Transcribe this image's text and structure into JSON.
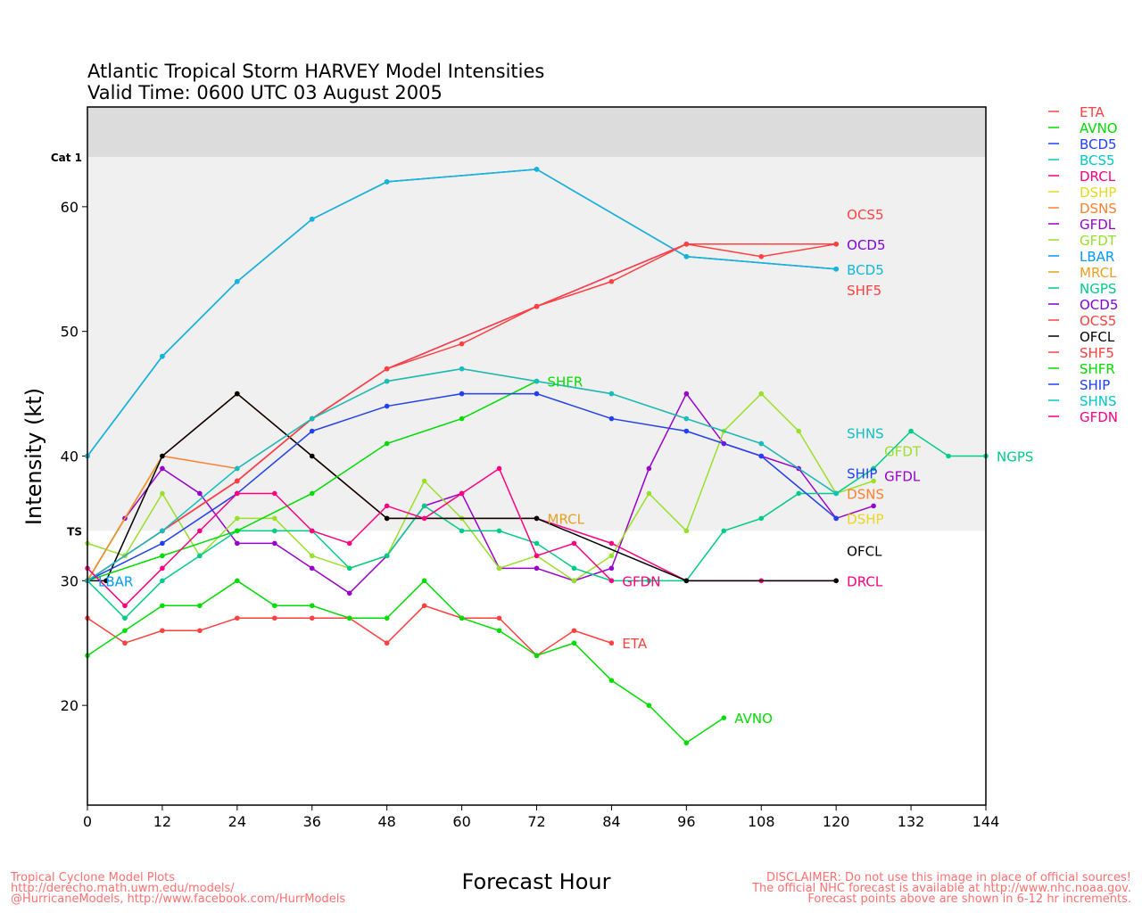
{
  "chart_data": {
    "type": "line",
    "title": "Atlantic Tropical Storm HARVEY Model Intensities",
    "subtitle": "Valid Time: 0600 UTC 03 August 2005",
    "xlabel": "Forecast Hour",
    "ylabel": "Intensity (kt)",
    "xlim": [
      0,
      144
    ],
    "ylim": [
      12,
      68
    ],
    "xticks": [
      "0",
      "12",
      "24",
      "36",
      "48",
      "60",
      "72",
      "84",
      "96",
      "108",
      "120",
      "132",
      "144"
    ],
    "yticks": [
      "20",
      "30",
      "40",
      "50",
      "60"
    ],
    "bands": [
      {
        "label": "TS",
        "from": 34,
        "to": 64,
        "color": "#f0f0f0"
      },
      {
        "label": "Cat 1",
        "from": 64,
        "to": 68,
        "color": "#dcdcdc"
      }
    ],
    "legend_position": "right",
    "series": [
      {
        "name": "ETA",
        "color": "#ff4040",
        "label": "ETA",
        "points": [
          [
            0,
            27
          ],
          [
            6,
            25
          ],
          [
            12,
            26
          ],
          [
            18,
            26
          ],
          [
            24,
            27
          ],
          [
            30,
            27
          ],
          [
            36,
            27
          ],
          [
            42,
            27
          ],
          [
            48,
            25
          ],
          [
            54,
            28
          ],
          [
            60,
            27
          ],
          [
            66,
            27
          ],
          [
            72,
            24
          ],
          [
            78,
            26
          ],
          [
            84,
            25
          ]
        ]
      },
      {
        "name": "AVNO",
        "color": "#00dd00",
        "label": "AVNO",
        "points": [
          [
            0,
            24
          ],
          [
            6,
            26
          ],
          [
            12,
            28
          ],
          [
            18,
            28
          ],
          [
            24,
            30
          ],
          [
            30,
            28
          ],
          [
            36,
            28
          ],
          [
            42,
            27
          ],
          [
            48,
            27
          ],
          [
            54,
            30
          ],
          [
            60,
            27
          ],
          [
            66,
            26
          ],
          [
            72,
            24
          ],
          [
            78,
            25
          ],
          [
            84,
            22
          ],
          [
            90,
            20
          ],
          [
            96,
            17
          ],
          [
            102,
            19
          ]
        ]
      },
      {
        "name": "BCD5",
        "color": "#2040ff",
        "label": "",
        "points": [
          [
            0,
            40
          ],
          [
            12,
            48
          ],
          [
            24,
            54
          ],
          [
            36,
            59
          ],
          [
            48,
            62
          ],
          [
            72,
            63
          ],
          [
            96,
            56
          ],
          [
            120,
            55
          ]
        ]
      },
      {
        "name": "BCS5",
        "color": "#10b8d8",
        "label": "BCD5",
        "points": [
          [
            0,
            40
          ],
          [
            12,
            48
          ],
          [
            24,
            54
          ],
          [
            36,
            59
          ],
          [
            48,
            62
          ],
          [
            72,
            63
          ],
          [
            96,
            56
          ],
          [
            120,
            55
          ]
        ]
      },
      {
        "name": "DRCL",
        "color": "#ff0080",
        "label": "DRCL",
        "points": [
          [
            0,
            30
          ],
          [
            12,
            40
          ],
          [
            24,
            45
          ],
          [
            36,
            40
          ],
          [
            48,
            35
          ],
          [
            72,
            35
          ],
          [
            84,
            33
          ],
          [
            96,
            30
          ],
          [
            108,
            30
          ],
          [
            120,
            30
          ]
        ]
      },
      {
        "name": "DSHP",
        "color": "#e8d820",
        "label": "DSHP",
        "points": [
          [
            0,
            30
          ],
          [
            12,
            33
          ],
          [
            24,
            37
          ],
          [
            36,
            42
          ],
          [
            48,
            44
          ],
          [
            60,
            45
          ],
          [
            72,
            45
          ],
          [
            84,
            43
          ],
          [
            96,
            42
          ],
          [
            108,
            40
          ],
          [
            120,
            35
          ]
        ]
      },
      {
        "name": "DSNS",
        "color": "#ff8030",
        "label": "DSNS",
        "points": [
          [
            0,
            30
          ],
          [
            12,
            40
          ],
          [
            24,
            39
          ],
          [
            36,
            43
          ],
          [
            48,
            46
          ],
          [
            60,
            47
          ],
          [
            72,
            46
          ],
          [
            84,
            45
          ],
          [
            96,
            43
          ],
          [
            108,
            41
          ],
          [
            120,
            37
          ]
        ]
      },
      {
        "name": "GFDL",
        "color": "#9900cc",
        "label": "GFDL",
        "points": [
          [
            0,
            30
          ],
          [
            6,
            35
          ],
          [
            12,
            39
          ],
          [
            18,
            37
          ],
          [
            24,
            33
          ],
          [
            30,
            33
          ],
          [
            36,
            31
          ],
          [
            42,
            29
          ],
          [
            48,
            32
          ],
          [
            54,
            36
          ],
          [
            60,
            37
          ],
          [
            66,
            31
          ],
          [
            72,
            31
          ],
          [
            78,
            30
          ],
          [
            84,
            31
          ],
          [
            90,
            39
          ],
          [
            96,
            45
          ],
          [
            102,
            41
          ],
          [
            108,
            40
          ],
          [
            114,
            39
          ],
          [
            120,
            35
          ],
          [
            126,
            36
          ]
        ]
      },
      {
        "name": "GFDT",
        "color": "#99e02a",
        "label": "GFDT",
        "points": [
          [
            0,
            33
          ],
          [
            6,
            32
          ],
          [
            12,
            37
          ],
          [
            18,
            32
          ],
          [
            24,
            35
          ],
          [
            30,
            35
          ],
          [
            36,
            32
          ],
          [
            42,
            31
          ],
          [
            48,
            32
          ],
          [
            54,
            38
          ],
          [
            60,
            35
          ],
          [
            66,
            31
          ],
          [
            72,
            32
          ],
          [
            78,
            30
          ],
          [
            84,
            32
          ],
          [
            90,
            37
          ],
          [
            96,
            34
          ],
          [
            102,
            42
          ],
          [
            108,
            45
          ],
          [
            114,
            42
          ],
          [
            120,
            37
          ],
          [
            126,
            38
          ]
        ]
      },
      {
        "name": "LBAR",
        "color": "#0099ff",
        "label": "LBAR",
        "points": [
          [
            0,
            30
          ]
        ]
      },
      {
        "name": "MRCL",
        "color": "#e8a020",
        "label": "MRCL",
        "points": [
          [
            0,
            30
          ],
          [
            12,
            40
          ],
          [
            24,
            45
          ],
          [
            36,
            40
          ],
          [
            48,
            35
          ],
          [
            72,
            35
          ]
        ]
      },
      {
        "name": "NGPS",
        "color": "#00cc88",
        "label": "NGPS",
        "points": [
          [
            0,
            30
          ],
          [
            6,
            27
          ],
          [
            12,
            30
          ],
          [
            18,
            32
          ],
          [
            24,
            34
          ],
          [
            30,
            34
          ],
          [
            36,
            34
          ],
          [
            42,
            31
          ],
          [
            48,
            32
          ],
          [
            54,
            36
          ],
          [
            60,
            34
          ],
          [
            66,
            34
          ],
          [
            72,
            33
          ],
          [
            78,
            31
          ],
          [
            84,
            30
          ],
          [
            90,
            30
          ],
          [
            96,
            30
          ],
          [
            102,
            34
          ],
          [
            108,
            35
          ],
          [
            114,
            37
          ],
          [
            120,
            37
          ],
          [
            126,
            39
          ],
          [
            132,
            42
          ],
          [
            138,
            40
          ],
          [
            144,
            40
          ]
        ]
      },
      {
        "name": "OCD5",
        "color": "#8000dd",
        "label": "OCD5",
        "points": [
          [
            0,
            30
          ],
          [
            12,
            34
          ],
          [
            24,
            38
          ],
          [
            36,
            43
          ],
          [
            48,
            47
          ],
          [
            72,
            52
          ],
          [
            96,
            57
          ],
          [
            120,
            57
          ]
        ]
      },
      {
        "name": "OCS5",
        "color": "#ff4040",
        "label": "OCS5",
        "points": [
          [
            0,
            30
          ],
          [
            12,
            34
          ],
          [
            24,
            38
          ],
          [
            36,
            43
          ],
          [
            48,
            47
          ],
          [
            72,
            52
          ],
          [
            96,
            57
          ],
          [
            120,
            57
          ]
        ]
      },
      {
        "name": "OFCL",
        "color": "#000000",
        "label": "OFCL",
        "points": [
          [
            0,
            30
          ],
          [
            3,
            30
          ],
          [
            12,
            40
          ],
          [
            24,
            45
          ],
          [
            36,
            40
          ],
          [
            48,
            35
          ],
          [
            72,
            35
          ],
          [
            96,
            30
          ],
          [
            120,
            30
          ]
        ]
      },
      {
        "name": "SHF5",
        "color": "#ff4040",
        "label": "SHF5",
        "points": [
          [
            0,
            30
          ],
          [
            12,
            34
          ],
          [
            24,
            38
          ],
          [
            36,
            43
          ],
          [
            48,
            47
          ],
          [
            60,
            49
          ],
          [
            72,
            52
          ],
          [
            84,
            54
          ],
          [
            96,
            57
          ],
          [
            108,
            56
          ],
          [
            120,
            57
          ]
        ]
      },
      {
        "name": "SHFR",
        "color": "#00dd00",
        "label": "SHFR",
        "points": [
          [
            0,
            30
          ],
          [
            12,
            32
          ],
          [
            24,
            34
          ],
          [
            36,
            37
          ],
          [
            48,
            41
          ],
          [
            60,
            43
          ],
          [
            72,
            46
          ]
        ]
      },
      {
        "name": "SHIP",
        "color": "#2040ff",
        "label": "SHIP",
        "points": [
          [
            0,
            30
          ],
          [
            12,
            33
          ],
          [
            24,
            37
          ],
          [
            36,
            42
          ],
          [
            48,
            44
          ],
          [
            60,
            45
          ],
          [
            72,
            45
          ],
          [
            84,
            43
          ],
          [
            96,
            42
          ],
          [
            108,
            40
          ],
          [
            120,
            35
          ]
        ]
      },
      {
        "name": "SHNS",
        "color": "#10c0c0",
        "label": "SHNS",
        "points": [
          [
            0,
            30
          ],
          [
            12,
            34
          ],
          [
            24,
            39
          ],
          [
            36,
            43
          ],
          [
            48,
            46
          ],
          [
            60,
            47
          ],
          [
            72,
            46
          ],
          [
            84,
            45
          ],
          [
            96,
            43
          ],
          [
            108,
            41
          ],
          [
            120,
            37
          ]
        ]
      },
      {
        "name": "GFDN",
        "color": "#ff0080",
        "label": "GFDN",
        "points": [
          [
            0,
            31
          ],
          [
            6,
            28
          ],
          [
            12,
            31
          ],
          [
            18,
            34
          ],
          [
            24,
            37
          ],
          [
            30,
            37
          ],
          [
            36,
            34
          ],
          [
            42,
            33
          ],
          [
            48,
            36
          ],
          [
            54,
            35
          ],
          [
            60,
            37
          ],
          [
            66,
            39
          ],
          [
            72,
            32
          ],
          [
            78,
            33
          ],
          [
            84,
            30
          ]
        ]
      }
    ],
    "legend": [
      {
        "name": "ETA",
        "color": "#ff4040"
      },
      {
        "name": "AVNO",
        "color": "#00dd00"
      },
      {
        "name": "BCD5",
        "color": "#2040ff"
      },
      {
        "name": "BCS5",
        "color": "#00c8c8"
      },
      {
        "name": "DRCL",
        "color": "#ff0080"
      },
      {
        "name": "DSHP",
        "color": "#e8d820"
      },
      {
        "name": "DSNS",
        "color": "#ff8030"
      },
      {
        "name": "GFDL",
        "color": "#9900cc"
      },
      {
        "name": "GFDT",
        "color": "#99e02a"
      },
      {
        "name": "LBAR",
        "color": "#0099ff"
      },
      {
        "name": "MRCL",
        "color": "#e8a020"
      },
      {
        "name": "NGPS",
        "color": "#00cc88"
      },
      {
        "name": "OCD5",
        "color": "#8000dd"
      },
      {
        "name": "OCS5",
        "color": "#ff4040"
      },
      {
        "name": "OFCL",
        "color": "#000000"
      },
      {
        "name": "SHF5",
        "color": "#ff4040"
      },
      {
        "name": "SHFR",
        "color": "#00dd00"
      },
      {
        "name": "SHIP",
        "color": "#2040ff"
      },
      {
        "name": "SHNS",
        "color": "#00c8c8"
      },
      {
        "name": "GFDN",
        "color": "#ff0080"
      }
    ]
  },
  "footer": {
    "left": [
      "Tropical Cyclone Model Plots",
      "http://derecho.math.uwm.edu/models/",
      "@HurricaneModels, http://www.facebook.com/HurrModels"
    ],
    "right": [
      "DISCLAIMER: Do not use this image in place of official sources!",
      "The official NHC forecast is available at http://www.nhc.noaa.gov.",
      "Forecast points above are shown in 6-12 hr increments."
    ]
  }
}
